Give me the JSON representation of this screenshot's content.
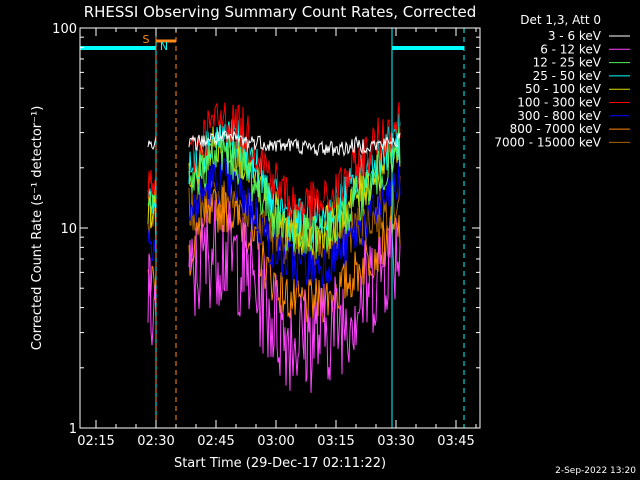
{
  "chart_data": {
    "type": "line",
    "title": "RHESSI Observing Summary Count Rates, Corrected",
    "xlabel": "Start Time (29-Dec-17 02:11:22)",
    "ylabel": "Corrected Count Rate (s⁻¹ detector⁻¹)",
    "yscale": "log",
    "ylim": [
      1,
      100
    ],
    "xlim": [
      "02:11",
      "03:51"
    ],
    "x_ticks": [
      "02:15",
      "02:30",
      "02:45",
      "03:00",
      "03:15",
      "03:30",
      "03:45"
    ],
    "y_ticks": [
      "1",
      "10",
      "100"
    ],
    "legend_title": "Det 1,3, Att 0",
    "legend_position": "right",
    "footer": "2-Sep-2022 13:20",
    "annotations": {
      "s_label": "S",
      "n_label": "N"
    },
    "colors": {
      "background": "#000000",
      "axes": "#ffffff",
      "eclipse": "#00ffff",
      "saa": "#ff8c1a"
    },
    "eclipse_intervals": [
      [
        "02:11",
        "02:30"
      ],
      [
        "03:29",
        "03:47"
      ]
    ],
    "saa_interval": [
      "02:30",
      "02:35"
    ],
    "x": [
      "02:28",
      "02:30",
      "02:32",
      "02:35",
      "02:38",
      "02:41",
      "02:44",
      "02:47",
      "02:50",
      "02:53",
      "02:56",
      "02:59",
      "03:02",
      "03:05",
      "03:08",
      "03:11",
      "03:14",
      "03:17",
      "03:20",
      "03:23",
      "03:26",
      "03:29",
      "03:31"
    ],
    "series": [
      {
        "name": "3 - 6 keV",
        "color": "#ffffff",
        "values": [
          26,
          28,
          null,
          null,
          26,
          27,
          28,
          28,
          28,
          27,
          27,
          26,
          26,
          26,
          25,
          25,
          25,
          25,
          26,
          26,
          26,
          27,
          28
        ]
      },
      {
        "name": "6 - 12 keV",
        "color": "#ff44ff",
        "values": [
          4.0,
          4.0,
          null,
          null,
          5.0,
          6.5,
          7.8,
          7.6,
          7.0,
          6.0,
          4.6,
          3.6,
          3.0,
          2.8,
          2.8,
          2.9,
          3.2,
          3.6,
          4.2,
          5.0,
          6.2,
          7.5,
          8.5
        ]
      },
      {
        "name": "12 - 25 keV",
        "color": "#55ee55",
        "values": [
          12,
          12,
          null,
          null,
          15,
          19,
          23,
          24,
          22,
          19,
          15,
          12,
          10,
          9,
          9,
          9.2,
          10,
          11.5,
          13.5,
          16,
          19,
          22,
          25
        ]
      },
      {
        "name": "25 - 50 keV",
        "color": "#00ffff",
        "values": [
          14,
          14,
          null,
          null,
          18,
          23,
          28,
          29,
          27,
          23,
          18,
          14,
          12,
          11,
          11,
          11.2,
          12,
          14,
          17,
          20,
          23,
          26,
          29
        ]
      },
      {
        "name": "50 - 100 keV",
        "color": "#dddd00",
        "values": [
          12,
          12,
          null,
          null,
          16,
          21,
          26,
          27,
          25,
          21,
          16,
          12.5,
          10.5,
          9.5,
          9.5,
          9.7,
          10.5,
          12,
          14.5,
          17,
          20,
          23,
          26
        ]
      },
      {
        "name": "100 - 300 keV",
        "color": "#ff0000",
        "values": [
          16,
          16,
          null,
          null,
          21,
          27,
          33,
          35,
          33,
          29,
          23,
          18,
          15,
          13,
          13,
          13,
          14,
          17,
          20,
          24,
          28,
          32,
          35
        ]
      },
      {
        "name": "300 - 800 keV",
        "color": "#0000ff",
        "values": [
          9,
          9,
          null,
          null,
          11,
          14,
          17,
          17.5,
          16,
          13.5,
          10.5,
          8.2,
          7.0,
          6.5,
          6.5,
          6.6,
          7.0,
          8.0,
          9.5,
          11,
          13,
          15,
          17
        ]
      },
      {
        "name": "800 - 7000 keV",
        "color": "#ff8800",
        "values": [
          5.5,
          5.5,
          null,
          null,
          7.0,
          9.5,
          12,
          12.5,
          11.5,
          9.5,
          7.2,
          5.6,
          4.6,
          4.2,
          4.2,
          4.3,
          4.6,
          5.2,
          6.0,
          7.0,
          8.0,
          9.0,
          10
        ]
      },
      {
        "name": "7000 - 15000 keV",
        "color": "#aa6600",
        "values": [
          10,
          10,
          null,
          null,
          12,
          13,
          14,
          14,
          13.5,
          12.5,
          11,
          9.5,
          8.7,
          8.3,
          8.3,
          8.4,
          8.7,
          9.2,
          10,
          11,
          12,
          13,
          14
        ]
      }
    ]
  }
}
